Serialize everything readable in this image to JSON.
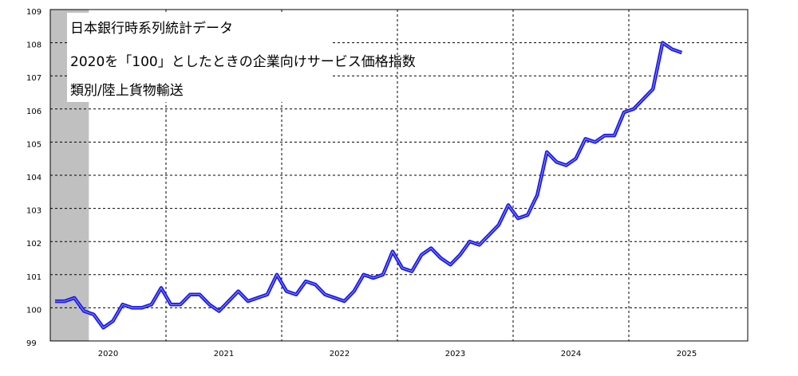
{
  "chart_data": {
    "type": "line",
    "title_lines": [
      "日本銀行時系列統計データ",
      "2020を「100」としたときの企業向けサービス価格指数",
      "類別/陸上貨物輸送"
    ],
    "categories": [
      null,
      null,
      null,
      null,
      null,
      null,
      "2020",
      null,
      null,
      null,
      null,
      null,
      null,
      null,
      null,
      null,
      null,
      null,
      "2021",
      null,
      null,
      null,
      null,
      null,
      null,
      null,
      null,
      null,
      null,
      null,
      "2022",
      null,
      null,
      null,
      null,
      null,
      null,
      null,
      null,
      null,
      null,
      null,
      "2023",
      null,
      null,
      null,
      null,
      null,
      null,
      null,
      null,
      null,
      null,
      null,
      "2024",
      null,
      null,
      null,
      null,
      null,
      null,
      null,
      null,
      null,
      null,
      null
    ],
    "series": [
      {
        "name": null,
        "color": "#1a1ae6",
        "values": [
          100.2,
          100.2,
          100.3,
          99.9,
          99.8,
          99.4,
          99.6,
          100.1,
          100.0,
          100.0,
          100.1,
          100.6,
          100.1,
          100.1,
          100.4,
          100.4,
          100.1,
          99.9,
          100.2,
          100.5,
          100.2,
          100.3,
          100.4,
          101.0,
          100.5,
          100.4,
          100.8,
          100.7,
          100.4,
          100.3,
          100.2,
          100.5,
          101.0,
          100.9,
          101.0,
          101.7,
          101.2,
          101.1,
          101.6,
          101.8,
          101.5,
          101.3,
          101.6,
          102.0,
          101.9,
          102.2,
          102.5,
          103.1,
          102.7,
          102.8,
          103.4,
          104.7,
          104.4,
          104.3,
          104.5,
          105.1,
          105.0,
          105.2,
          105.2,
          105.9,
          106.0,
          106.3,
          106.6,
          108.0,
          107.8,
          107.7
        ]
      }
    ],
    "year_label_2025": "2025",
    "ylim": [
      99,
      109
    ],
    "yticks": [
      99,
      100,
      101,
      102,
      103,
      104,
      105,
      106,
      107,
      108,
      109
    ],
    "grid": true
  }
}
